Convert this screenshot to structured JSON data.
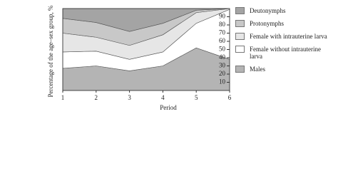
{
  "chart_data": {
    "type": "stacked_area",
    "x_label": "Period",
    "y_label": "Percentage of the age–sex group, %",
    "x": [
      1,
      2,
      3,
      4,
      5,
      6
    ],
    "xlim": [
      1,
      6
    ],
    "xticks": [
      1,
      2,
      3,
      4,
      5,
      6
    ],
    "ylim": [
      0,
      100
    ],
    "yticks": [
      10,
      20,
      30,
      40,
      50,
      60,
      70,
      80,
      90
    ],
    "series": [
      {
        "name": "Males",
        "color": "#b4b4b4",
        "values": [
          27,
          30,
          24,
          30,
          52,
          38
        ]
      },
      {
        "name": "Female without intrauterine larva",
        "color": "#ffffff",
        "values": [
          20,
          18,
          14,
          17,
          30,
          61
        ]
      },
      {
        "name": "Female with intrauterine larva",
        "color": "#e6e6e6",
        "values": [
          23,
          17,
          17,
          21,
          13,
          1
        ]
      },
      {
        "name": "Protonymphs",
        "color": "#c8c8c8",
        "values": [
          18,
          18,
          17,
          14,
          3,
          0
        ]
      },
      {
        "name": "Deutonymphs",
        "color": "#a4a4a4",
        "values": [
          12,
          17,
          28,
          18,
          2,
          0
        ]
      }
    ]
  }
}
